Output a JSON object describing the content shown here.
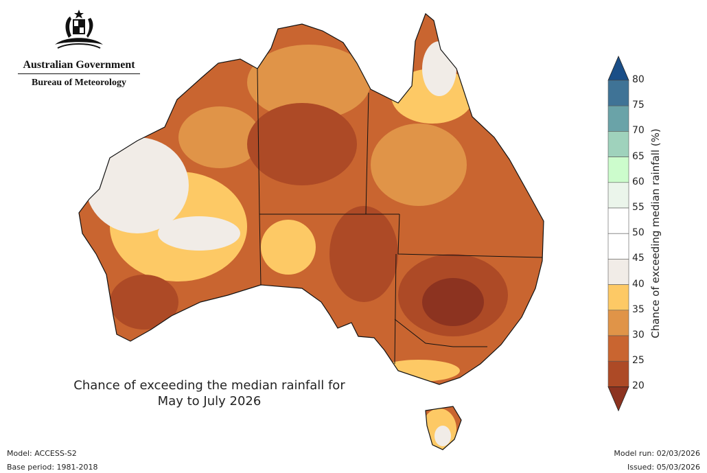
{
  "logo": {
    "government": "Australian Government",
    "agency": "Bureau of Meteorology"
  },
  "title": {
    "line1": "Chance of exceeding the median rainfall for",
    "line2": "May to July 2026"
  },
  "footer": {
    "model": "Model: ACCESS-S2",
    "base_period": "Base period: 1981-2018",
    "model_run": "Model run: 02/03/2026",
    "issued": "Issued: 05/03/2026"
  },
  "colorbar": {
    "label": "Chance of exceeding median rainfall (%)",
    "ticks": [
      "80",
      "75",
      "70",
      "65",
      "60",
      "55",
      "50",
      "45",
      "40",
      "35",
      "30",
      "25",
      "20"
    ],
    "above_color": "#1a4e87",
    "below_color": "#8c3320",
    "bins": [
      {
        "range": "75-80",
        "color": "#3f7396"
      },
      {
        "range": "70-75",
        "color": "#6aa3a8"
      },
      {
        "range": "65-70",
        "color": "#9fd2bc"
      },
      {
        "range": "60-65",
        "color": "#ccfccc"
      },
      {
        "range": "55-60",
        "color": "#ebf5eb"
      },
      {
        "range": "50-55",
        "color": "#ffffff"
      },
      {
        "range": "45-50",
        "color": "#ffffff"
      },
      {
        "range": "40-45",
        "color": "#f1ece7"
      },
      {
        "range": "35-40",
        "color": "#fdc965"
      },
      {
        "range": "30-35",
        "color": "#e09448"
      },
      {
        "range": "25-30",
        "color": "#c96530"
      },
      {
        "range": "20-25",
        "color": "#ad4a26"
      }
    ]
  }
}
